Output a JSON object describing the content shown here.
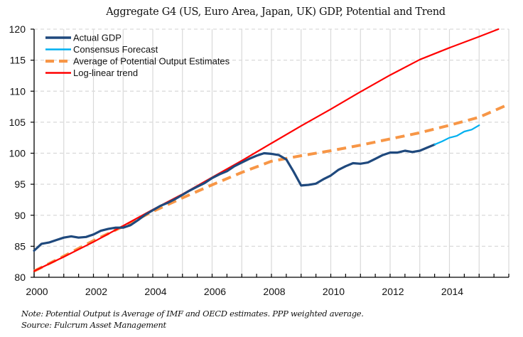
{
  "chart_data": {
    "type": "line",
    "title": "Aggregate G4 (US, Euro Area, Japan, UK) GDP, Potential and Trend",
    "xlabel": "",
    "ylabel": "",
    "xlim": [
      2000,
      2016
    ],
    "ylim": [
      80,
      120
    ],
    "x_ticks": [
      2000,
      2002,
      2004,
      2006,
      2008,
      2010,
      2012,
      2014
    ],
    "x_tick_labels": [
      "2000",
      "2002",
      "2004",
      "2006",
      "2008",
      "2010",
      "2012",
      "2014"
    ],
    "y_ticks": [
      80,
      85,
      90,
      95,
      100,
      105,
      110,
      115,
      120
    ],
    "y_tick_labels": [
      "80",
      "85",
      "90",
      "95",
      "100",
      "105",
      "110",
      "115",
      "120"
    ],
    "grid": {
      "horizontal": "dashed",
      "vertical": "solid-yearly"
    },
    "legend_position": "top-left",
    "series": [
      {
        "name": "Actual GDP",
        "color": "#1f497d",
        "style": "solid",
        "x": [
          2000.0,
          2000.25,
          2000.5,
          2000.75,
          2001.0,
          2001.25,
          2001.5,
          2001.75,
          2002.0,
          2002.25,
          2002.5,
          2002.75,
          2003.0,
          2003.25,
          2003.5,
          2003.75,
          2004.0,
          2004.25,
          2004.5,
          2004.75,
          2005.0,
          2005.25,
          2005.5,
          2005.75,
          2006.0,
          2006.25,
          2006.5,
          2006.75,
          2007.0,
          2007.25,
          2007.5,
          2007.75,
          2008.0,
          2008.25,
          2008.5,
          2008.75,
          2009.0,
          2009.25,
          2009.5,
          2009.75,
          2010.0,
          2010.25,
          2010.5,
          2010.75,
          2011.0,
          2011.25,
          2011.5,
          2011.75,
          2012.0,
          2012.25,
          2012.5,
          2012.75,
          2013.0,
          2013.25,
          2013.5
        ],
        "values": [
          84.3,
          85.4,
          85.6,
          86.0,
          86.4,
          86.6,
          86.4,
          86.5,
          86.9,
          87.5,
          87.8,
          88.0,
          88.0,
          88.4,
          89.2,
          90.1,
          90.8,
          91.5,
          92.0,
          92.6,
          93.3,
          94.0,
          94.6,
          95.2,
          96.0,
          96.6,
          97.1,
          97.9,
          98.5,
          99.1,
          99.6,
          100.0,
          99.9,
          99.7,
          99.0,
          97.0,
          94.8,
          94.9,
          95.1,
          95.8,
          96.4,
          97.3,
          97.9,
          98.4,
          98.3,
          98.5,
          99.1,
          99.7,
          100.1,
          100.1,
          100.4,
          100.2,
          100.4,
          100.9,
          101.4
        ]
      },
      {
        "name": "Consensus Forecast",
        "color": "#00b0f0",
        "style": "solid",
        "x": [
          2013.5,
          2013.75,
          2014.0,
          2014.25,
          2014.5,
          2014.75,
          2015.0
        ],
        "values": [
          101.4,
          101.9,
          102.5,
          102.8,
          103.5,
          103.8,
          104.5
        ]
      },
      {
        "name": "Average of Potential Output Estimates",
        "color": "#f79646",
        "style": "dashed",
        "x": [
          2000,
          2001,
          2002,
          2003,
          2004,
          2005,
          2006,
          2007,
          2008,
          2009,
          2010,
          2011,
          2012,
          2013,
          2014,
          2015,
          2016
        ],
        "values": [
          81.0,
          83.4,
          85.9,
          88.2,
          90.6,
          92.8,
          94.9,
          96.9,
          98.7,
          99.6,
          100.4,
          101.3,
          102.3,
          103.3,
          104.5,
          105.8,
          107.9
        ]
      },
      {
        "name": "Log-linear trend",
        "color": "#ff0000",
        "style": "solid",
        "x": [
          2000,
          2001,
          2002,
          2003,
          2004,
          2005,
          2006,
          2007,
          2008,
          2009,
          2010,
          2011,
          2012,
          2013,
          2014,
          2015,
          2015.65
        ],
        "values": [
          81.0,
          83.3,
          85.7,
          88.3,
          90.9,
          93.4,
          96.1,
          98.8,
          101.6,
          104.4,
          107.1,
          109.9,
          112.6,
          115.1,
          117.0,
          118.8,
          120.0
        ]
      }
    ]
  },
  "footnote": {
    "note": "Note: Potential Output is Average of IMF and OECD estimates. PPP weighted average.",
    "source": "Source: Fulcrum Asset Management"
  }
}
